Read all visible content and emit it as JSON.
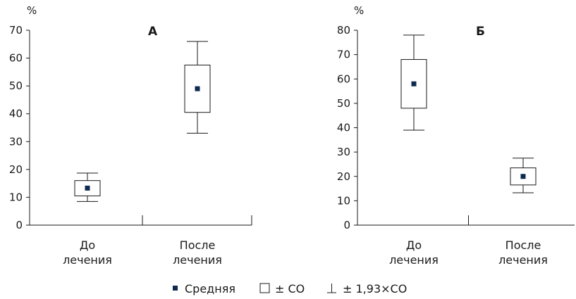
{
  "chart_data": [
    {
      "type": "box",
      "panel_label": "А",
      "unit": "%",
      "ylim": [
        0,
        70
      ],
      "yticks": [
        0,
        10,
        20,
        30,
        40,
        50,
        60,
        70
      ],
      "categories": [
        [
          "До",
          "лечения"
        ],
        [
          "После",
          "лечения"
        ]
      ],
      "boxes": [
        {
          "mean": 13.3,
          "sd_low": 10.5,
          "sd_high": 16.0,
          "ci_low": 8.5,
          "ci_high": 18.7
        },
        {
          "mean": 49.0,
          "sd_low": 40.5,
          "sd_high": 57.5,
          "ci_low": 33.0,
          "ci_high": 66.0
        }
      ]
    },
    {
      "type": "box",
      "panel_label": "Б",
      "unit": "%",
      "ylim": [
        0,
        80
      ],
      "yticks": [
        0,
        10,
        20,
        30,
        40,
        50,
        60,
        70,
        80
      ],
      "categories": [
        [
          "До",
          "лечения"
        ],
        [
          "После",
          "лечения"
        ]
      ],
      "boxes": [
        {
          "mean": 58.0,
          "sd_low": 48.0,
          "sd_high": 68.0,
          "ci_low": 39.0,
          "ci_high": 78.0
        },
        {
          "mean": 20.0,
          "sd_low": 16.5,
          "sd_high": 23.5,
          "ci_low": 13.3,
          "ci_high": 27.5
        }
      ]
    }
  ],
  "legend": {
    "mean_label": "Средняя",
    "box_label": "± СО",
    "whisker_label": "± 1,93×СО"
  },
  "colors": {
    "marker": "#0d2a4f",
    "ink": "#1a1a1a",
    "background": "#ffffff"
  }
}
